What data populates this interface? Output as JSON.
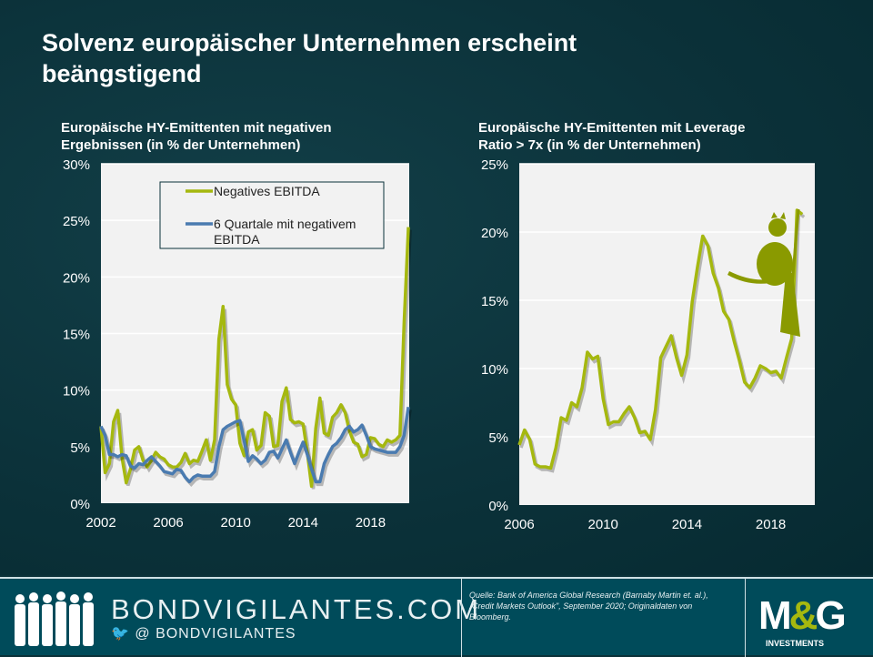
{
  "title": "Solvenz europäischer Unternehmen erscheint beängstigend",
  "colors": {
    "green": "#a5b80f",
    "blue": "#4a7bb0",
    "background": "#0b3139",
    "plot": "#f2f2f2"
  },
  "chart_data": [
    {
      "type": "line",
      "title": "Europäische HY-Emittenten mit negativen Ergebnissen (in % der Unternehmen)",
      "xlim": [
        2002,
        2020.3
      ],
      "ylim": [
        0,
        30
      ],
      "xticks": [
        "2002",
        "2006",
        "2010",
        "2014",
        "2018"
      ],
      "yticks": [
        "0%",
        "5%",
        "10%",
        "15%",
        "20%",
        "25%",
        "30%"
      ],
      "grid": "horizontal",
      "legend": "top-right",
      "series": [
        {
          "name": "Negatives EBITDA",
          "color": "#a5b80f",
          "start": 2002,
          "step": "quarter",
          "values": [
            6.8,
            2.7,
            3.5,
            7.2,
            8.2,
            4.0,
            1.8,
            3.0,
            4.7,
            5.0,
            3.8,
            3.2,
            3.8,
            4.5,
            4.1,
            3.9,
            3.4,
            3.2,
            3.2,
            3.6,
            4.4,
            3.5,
            3.8,
            3.7,
            4.6,
            5.6,
            3.8,
            5.6,
            14.5,
            17.4,
            10.5,
            9.2,
            8.7,
            5.3,
            4.2,
            6.3,
            6.5,
            4.7,
            5.1,
            8.0,
            7.7,
            5.0,
            5.1,
            9.0,
            10.2,
            7.4,
            7.1,
            7.2,
            7.0,
            4.5,
            1.5,
            6.6,
            9.3,
            6.2,
            6.0,
            7.6,
            8.0,
            8.7,
            8.0,
            6.4,
            5.4,
            5.2,
            4.1,
            4.3,
            5.8,
            5.7,
            5.2,
            5.0,
            5.6,
            5.4,
            5.6,
            6.0,
            16.0,
            24.4
          ]
        },
        {
          "name": "6 Quartale mit negativem EBITDA",
          "color": "#4a7bb0",
          "start": 2002,
          "step": "quarter",
          "values": [
            6.8,
            6.0,
            4.3,
            4.3,
            4.1,
            4.3,
            4.2,
            3.3,
            3.1,
            3.5,
            3.4,
            3.8,
            4.1,
            3.7,
            3.3,
            2.8,
            2.7,
            2.6,
            3.0,
            2.9,
            2.3,
            1.9,
            2.3,
            2.5,
            2.4,
            2.4,
            2.4,
            2.8,
            5.0,
            6.5,
            6.8,
            7.0,
            7.2,
            7.3,
            5.5,
            3.7,
            4.2,
            3.9,
            3.5,
            3.8,
            4.5,
            4.6,
            4.0,
            4.8,
            5.6,
            4.5,
            3.5,
            4.5,
            5.4,
            4.3,
            3.0,
            1.9,
            1.9,
            3.5,
            4.3,
            5.0,
            5.3,
            5.8,
            6.5,
            6.8,
            6.3,
            6.5,
            6.9,
            6.0,
            5.0,
            4.8,
            4.7,
            4.6,
            4.5,
            4.5,
            4.5,
            5.0,
            6.0,
            8.5
          ]
        }
      ]
    },
    {
      "type": "line",
      "title": "Europäische HY-Emittenten mit Leverage Ratio > 7x (in % der Unternehmen)",
      "xlim": [
        2006,
        2020.1
      ],
      "ylim": [
        0,
        25
      ],
      "xticks": [
        "2006",
        "2010",
        "2014",
        "2018"
      ],
      "yticks": [
        "0%",
        "5%",
        "10%",
        "15%",
        "20%",
        "25%"
      ],
      "grid": "horizontal",
      "series": [
        {
          "color": "#a5b80f",
          "start": 2006,
          "step": "quarter",
          "values": [
            4.4,
            5.5,
            4.8,
            3.0,
            2.8,
            2.8,
            2.7,
            4.2,
            6.4,
            6.2,
            7.5,
            7.2,
            8.6,
            11.2,
            10.7,
            10.9,
            7.8,
            5.9,
            6.1,
            6.1,
            6.7,
            7.2,
            6.4,
            5.3,
            5.4,
            4.8,
            7.0,
            10.8,
            11.6,
            12.4,
            10.8,
            9.5,
            11.0,
            14.9,
            17.4,
            19.7,
            19.0,
            17.0,
            15.9,
            14.2,
            13.6,
            12.0,
            10.6,
            9.0,
            8.6,
            9.3,
            10.2,
            10.0,
            9.7,
            9.8,
            9.3,
            10.8,
            12.2,
            21.6,
            21.3
          ]
        }
      ],
      "annotation_icon": "cat-on-broom-icon"
    }
  ],
  "footer": {
    "brand": "BONDVIGILANTES.COM",
    "twitter": "@ BONDVIGILANTES",
    "twitter_icon": "twitter-bird-icon",
    "source": "Quelle: Bank of America  Global Research (Barnaby Martin et. al.), „Credit Markets Outlook\", September  2020; Originaldaten von Bloomberg.",
    "logo": "M&G",
    "logo_sub": "INVESTMENTS"
  }
}
